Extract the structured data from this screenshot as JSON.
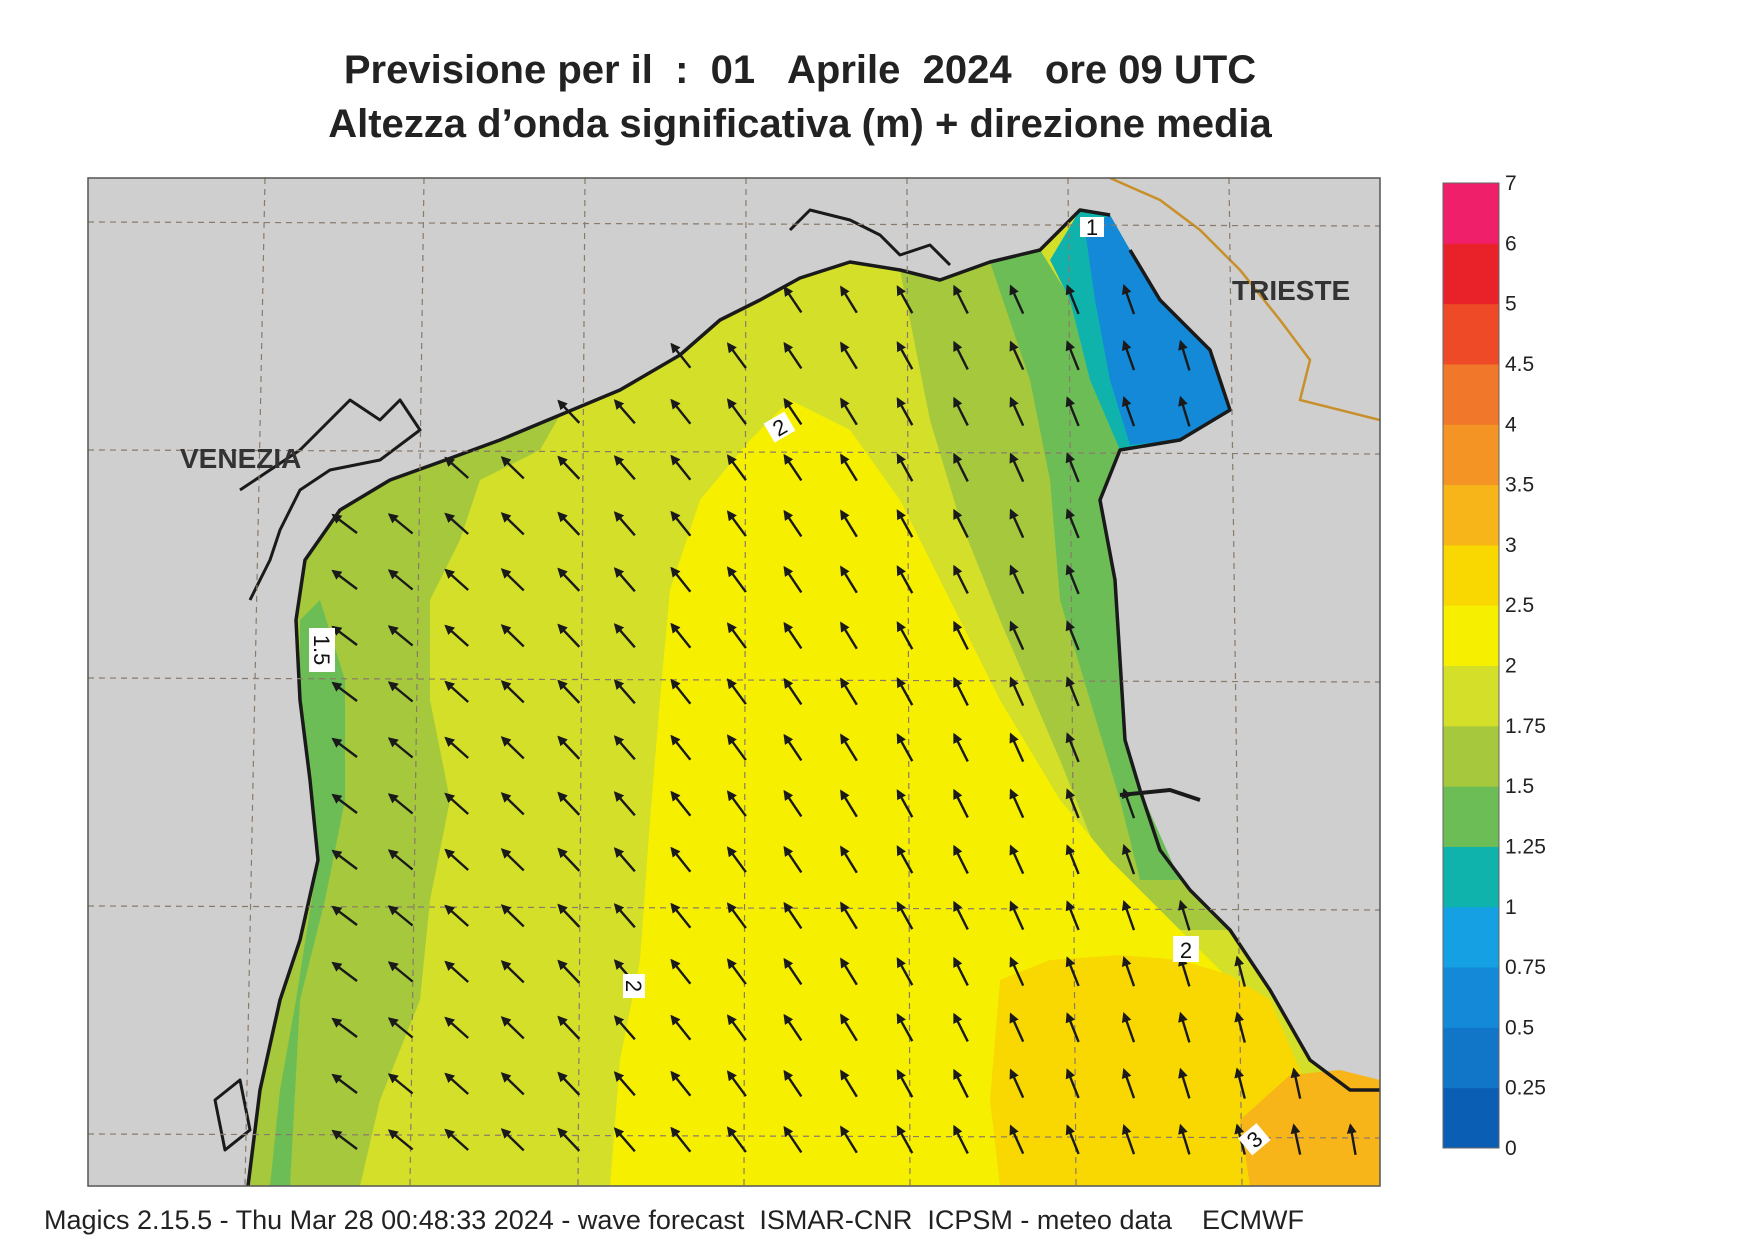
{
  "title": {
    "line1": "Previsione per il  :  01   Aprile  2024   ore 09 UTC",
    "line2": "Altezza d’onda significativa (m) + direzione media"
  },
  "cities": {
    "venezia": "VENEZIA",
    "trieste": "TRIESTE"
  },
  "contour_labels": [
    "1",
    "1.5",
    "2",
    "2",
    "2",
    "3"
  ],
  "colorbar": {
    "ticks": [
      "0",
      "0.25",
      "0.5",
      "0.75",
      "1",
      "1.25",
      "1.5",
      "1.75",
      "2",
      "2.5",
      "3",
      "3.5",
      "4",
      "4.5",
      "5",
      "6",
      "7"
    ],
    "colors": [
      "#0a5fb4",
      "#1175c8",
      "#1389d8",
      "#14a0e2",
      "#0fb3ac",
      "#6dbd56",
      "#a5c83d",
      "#d4df2a",
      "#f6f000",
      "#f8d800",
      "#f7b519",
      "#f49425",
      "#f1782a",
      "#ee4a27",
      "#e82228",
      "#ef1f6a"
    ]
  },
  "footer": "Magics 2.15.5 - Thu Mar 28 00:48:33 2024 - wave forecast  ISMAR-CNR  ICPSM - meteo data    ECMWF"
}
